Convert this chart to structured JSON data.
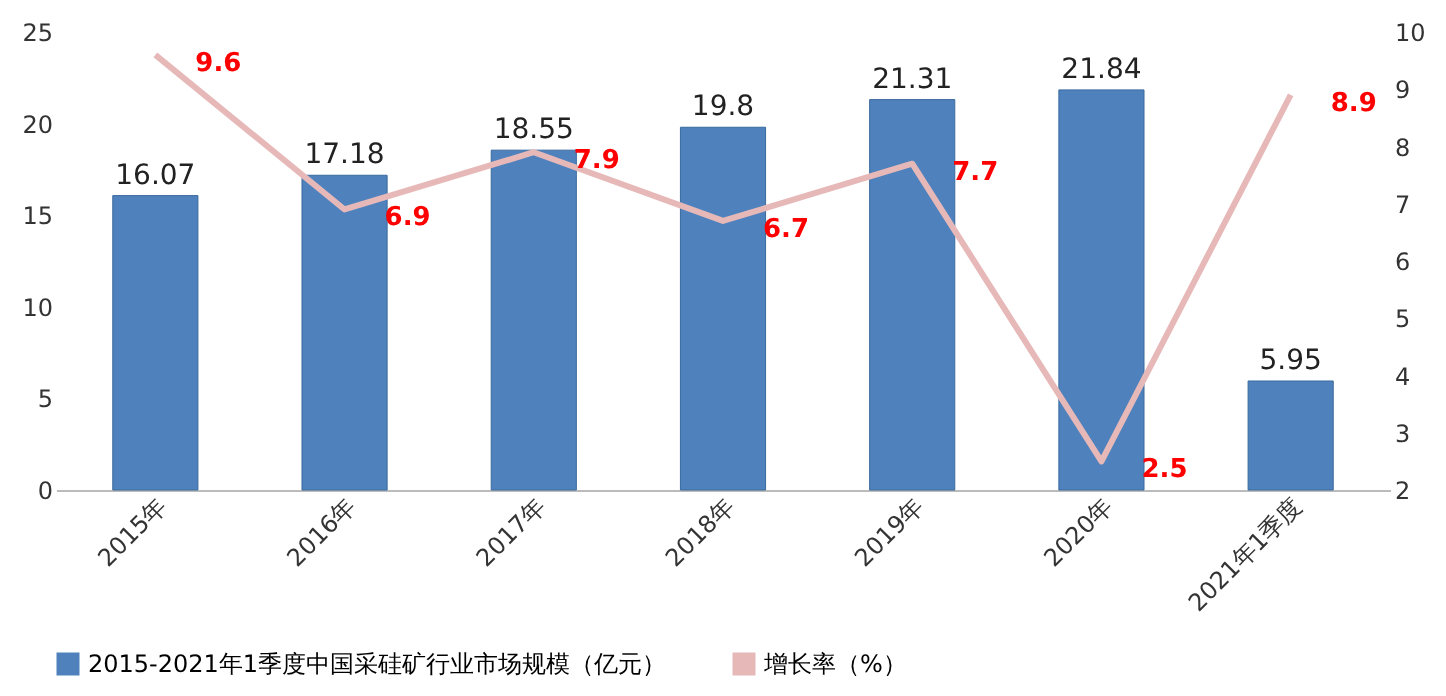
{
  "chart_data": {
    "type": "bar",
    "categories": [
      "2015年",
      "2016年",
      "2017年",
      "2018年",
      "2019年",
      "2020年",
      "2021年1季度"
    ],
    "series": [
      {
        "name": "2015-2021年1季度中国采硅矿行业市场规模（亿元）",
        "color": "#4f81bd",
        "values": [
          16.07,
          17.18,
          18.55,
          19.8,
          21.31,
          21.84,
          5.95
        ]
      },
      {
        "name": "增长率（%）",
        "type": "line",
        "axis": "y2",
        "color": "#e6b9b8",
        "values": [
          9.6,
          6.9,
          7.9,
          6.7,
          7.7,
          2.5,
          8.9
        ]
      }
    ],
    "ylim": [
      0,
      25
    ],
    "yticks": [
      0,
      5,
      10,
      15,
      20,
      25
    ],
    "y2lim": [
      2,
      10
    ],
    "y2ticks": [
      2,
      3,
      4,
      5,
      6,
      7,
      8,
      9,
      10
    ],
    "data_labels": true,
    "grid": false,
    "legend": "bottom",
    "marker": "none",
    "line_style": "solid"
  }
}
